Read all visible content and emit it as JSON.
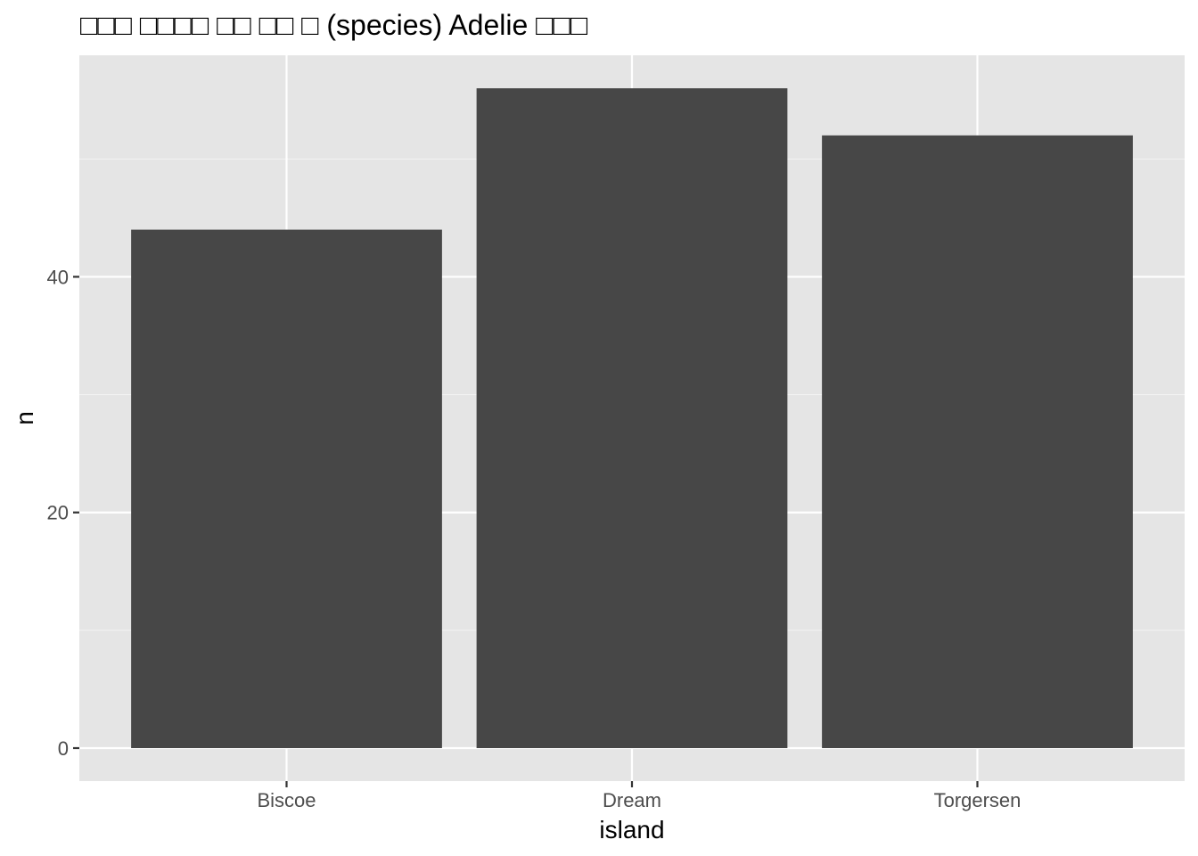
{
  "chart_data": {
    "type": "bar",
    "title": "□□□ □□□□ □□ □□ □ (species) Adelie □□□",
    "xlabel": "island",
    "ylabel": "n",
    "categories": [
      "Biscoe",
      "Dream",
      "Torgersen"
    ],
    "values": [
      44,
      56,
      52
    ],
    "ylim": [
      -2.8,
      58.8
    ],
    "yticks": [
      0,
      20,
      40
    ],
    "yticklabels": [
      "0",
      "20",
      "40"
    ],
    "grid": true,
    "legend": "none"
  },
  "colors": {
    "panel_background": "#e5e5e5",
    "grid_major": "#ffffff",
    "grid_minor": "#f2f2f2",
    "bar_fill": "#474747",
    "tick_text": "#4d4d4d",
    "axis_text": "#000000"
  }
}
